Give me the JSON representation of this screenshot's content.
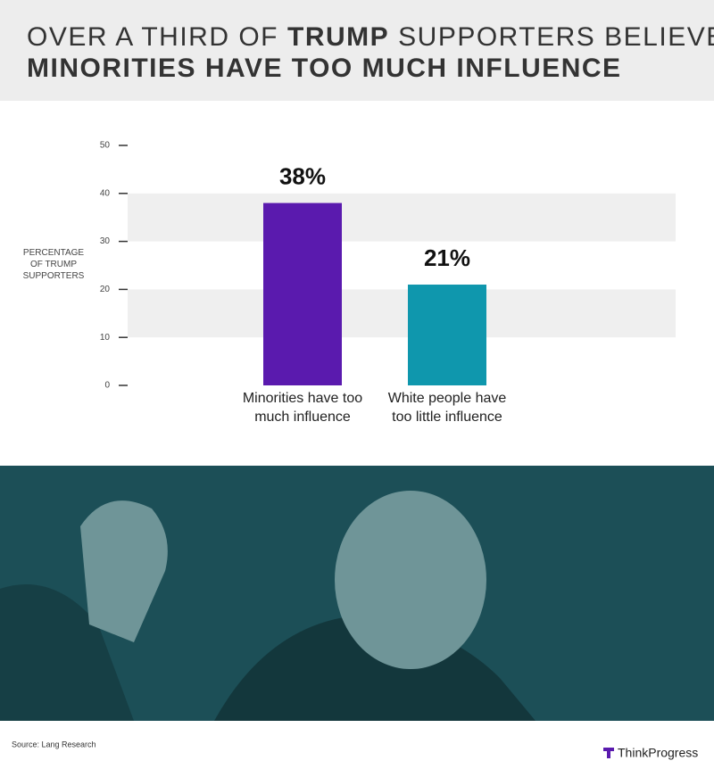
{
  "chart_data": {
    "type": "bar",
    "title_line1": [
      "OVER A THIRD OF",
      "TRUMP",
      "SUPPORTERS BELIEVE"
    ],
    "title_line2": "MINORITIES HAVE TOO MUCH INFLUENCE",
    "ylabel": [
      "PERCENTAGE",
      "OF TRUMP",
      "SUPPORTERS"
    ],
    "categories": [
      "Minorities have too much influence",
      "White people have too little influence"
    ],
    "values": [
      38,
      21
    ],
    "value_labels": [
      "38%",
      "21%"
    ],
    "colors": [
      "#5a1aae",
      "#0f97ad"
    ],
    "ylim": [
      0,
      50
    ],
    "yticks": [
      0,
      10,
      20,
      30,
      40,
      50
    ],
    "grid_bands": true,
    "source": "Source: Lang Research",
    "brand": "ThinkProgress"
  }
}
